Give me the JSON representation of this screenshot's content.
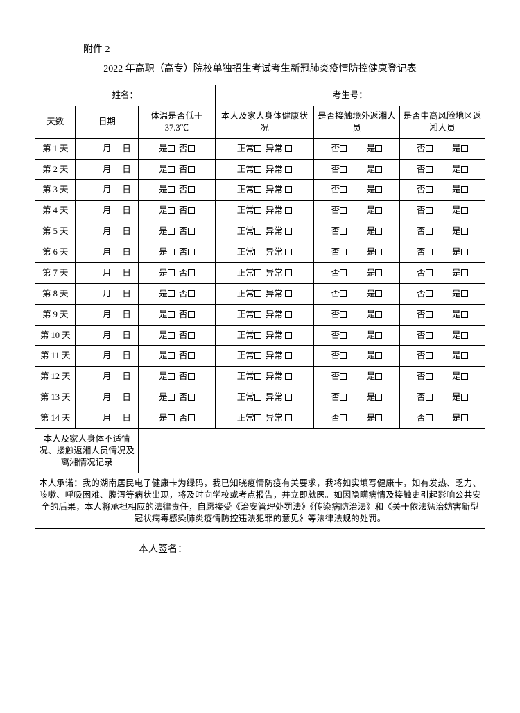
{
  "attachment_label": "附件 2",
  "title": "2022 年高职（高专）院校单独招生考试考生新冠肺炎疫情防控健康登记表",
  "name_label": "姓名：",
  "exam_id_label": "考生号：",
  "headers": {
    "days": "天数",
    "date": "日期",
    "temp": "体温是否低于 37.3℃",
    "health": "本人及家人身体健康状况",
    "contact": "是否接触境外返湘人员",
    "risk": "是否中高风险地区返湘人员"
  },
  "date_placeholder_m": "月",
  "date_placeholder_d": "日",
  "opt_yes": "是",
  "opt_no": "否",
  "opt_normal": "正常",
  "opt_abnormal": "异常",
  "rows": [
    {
      "day": "第 1 天"
    },
    {
      "day": "第 2 天"
    },
    {
      "day": "第 3 天"
    },
    {
      "day": "第 4 天"
    },
    {
      "day": "第 5 天"
    },
    {
      "day": "第 6 天"
    },
    {
      "day": "第 7 天"
    },
    {
      "day": "第 8 天"
    },
    {
      "day": "第 9 天"
    },
    {
      "day": "第 10 天"
    },
    {
      "day": "第 11 天"
    },
    {
      "day": "第 12 天"
    },
    {
      "day": "第 13 天"
    },
    {
      "day": "第 14 天"
    }
  ],
  "notes_label": "本人及家人身体不适情况、接触返湘人员情况及离湘情况记录",
  "pledge": "本人承诺：我的湖南居民电子健康卡为绿码，我已知晓疫情防疫有关要求，我将如实填写健康卡，如有发热、乏力、咳嗽、呼吸困难、腹泻等病状出现，将及时向学校或考点报告，并立即就医。如因隐瞒病情及接触史引起影响公共安全的后果，本人将承担相应的法律责任，自愿接受《治安管理处罚法》《传染病防治法》和《关于依法惩治妨害新型冠状病毒感染肺炎疫情防控违法犯罪的意见》等法律法规的处罚。",
  "signature_label": "本人签名：",
  "col_widths": {
    "c1": "9%",
    "c2": "14%",
    "c3": "17%",
    "c4": "22%",
    "c5": "19%",
    "c6": "19%"
  }
}
